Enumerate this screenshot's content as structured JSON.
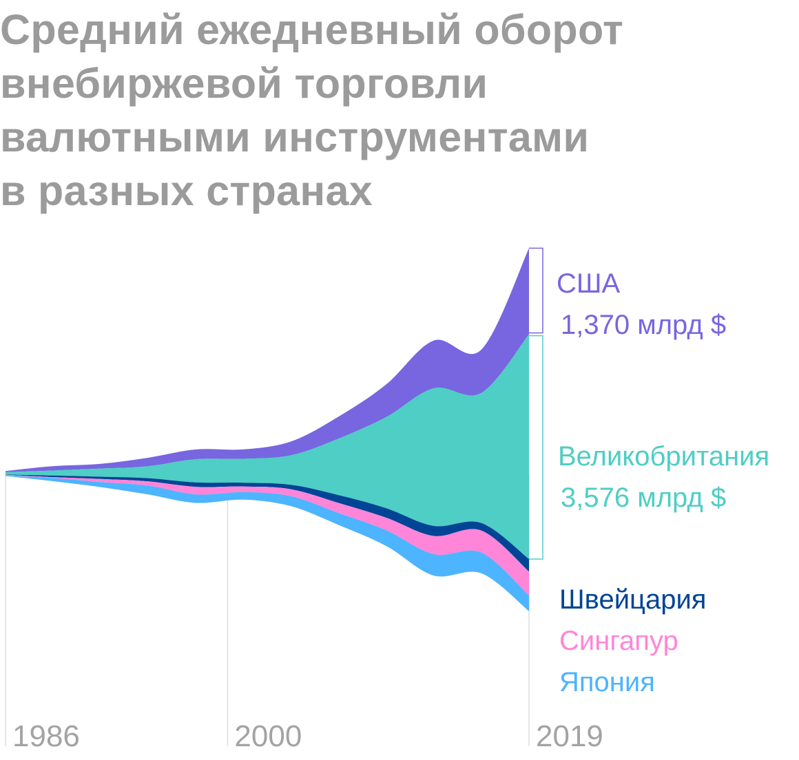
{
  "title": [
    "Средний ежедневный оборот",
    "внебиржевой торговли",
    "валютными инструментами",
    "в разных странах"
  ],
  "colors": {
    "usa": "#7766e0",
    "uk": "#4ecec4",
    "switzerland": "#004496",
    "singapore": "#ff85d9",
    "japan": "#4db4ff",
    "title": "#9b9b9b",
    "axis": "#a3a3a3",
    "gridline": "#dddddd"
  },
  "chart_data": {
    "type": "area",
    "subtype": "streamgraph",
    "x": [
      1986,
      1989,
      1992,
      1995,
      1998,
      2001,
      2004,
      2007,
      2010,
      2013,
      2016,
      2019
    ],
    "x_ticks": [
      "1986",
      "2000",
      "2019"
    ],
    "units": "млрд $",
    "series": [
      {
        "name": "США",
        "values": [
          20,
          70,
          75,
          135,
          155,
          150,
          220,
          350,
          520,
          760,
          690,
          1370
        ],
        "label_value": "1,370 млрд $",
        "color": "#7766e0"
      },
      {
        "name": "Великобритания",
        "values": [
          35,
          80,
          130,
          190,
          370,
          380,
          470,
          900,
          1450,
          2190,
          2070,
          3576
        ],
        "label_value": "3,576 млрд $",
        "color": "#4ecec4"
      },
      {
        "name": "Швейцария",
        "values": [
          5,
          25,
          35,
          50,
          70,
          60,
          70,
          125,
          150,
          160,
          120,
          200
        ],
        "color": "#004496"
      },
      {
        "name": "Сингапур",
        "values": [
          10,
          15,
          50,
          70,
          120,
          90,
          110,
          160,
          200,
          290,
          350,
          380
        ],
        "color": "#ff85d9"
      },
      {
        "name": "Япония",
        "values": [
          10,
          50,
          80,
          140,
          135,
          120,
          160,
          190,
          250,
          340,
          330,
          250
        ],
        "color": "#4db4ff"
      }
    ]
  }
}
